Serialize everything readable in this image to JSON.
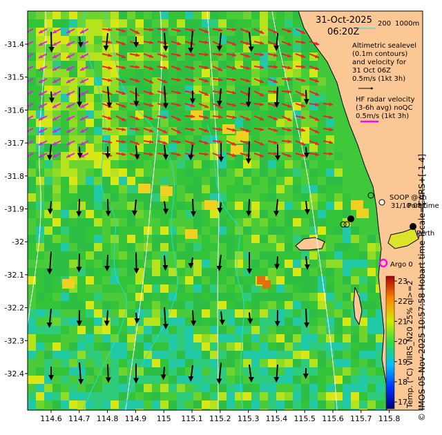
{
  "header": {
    "date": "31-Oct-2025",
    "time": "06:20Z"
  },
  "scale_bar": {
    "label_a": "200",
    "label_b": "1000m"
  },
  "altimetry": {
    "lines": [
      "Altimetric sealevel",
      "(0.1m contours)",
      "and velocity for",
      "31 Oct 06Z",
      "0.5m/s (1kt 3h)"
    ]
  },
  "hf_radar": {
    "lines": [
      "HF radar velocity",
      "(3-6h avg) noQC",
      "0.5m/s (1kt 3h)"
    ]
  },
  "soop": {
    "lines": [
      "SOOP @1h",
      "31/10 08Z"
    ],
    "overlap_text": "Port time"
  },
  "places": {
    "perth": "Perth"
  },
  "argo": {
    "label": "Argo 0"
  },
  "x_ticks": [
    "114.6",
    "114.7",
    "114.8",
    "114.9",
    "115",
    "115.1",
    "115.2",
    "115.3",
    "115.4",
    "115.5",
    "115.6",
    "115.7",
    "115.8"
  ],
  "y_ticks": [
    "-31.4",
    "-31.5",
    "-31.6",
    "-31.7",
    "-31.8",
    "-31.9",
    "-32",
    "-32.1",
    "-32.2",
    "-32.3",
    "-32.4"
  ],
  "colorbar": {
    "ticks": [
      "23",
      "22",
      "21",
      "20",
      "19",
      "18",
      "17"
    ],
    "label": "Temp. (°C) VIIRS_N20 25% ql>=2"
  },
  "credit": "© IMOS 05-Nov-2025 10:57:58 Hobart time Tscale=CARS+[-1 4]",
  "colors": {
    "land": "#fbc794",
    "ocean_warm": "#b5e41e",
    "ocean_mid": "#3fc83a",
    "ocean_cool": "#1ec8a8",
    "altimetry_arrow": "#000000",
    "hf_radar_arrow": "#ee2222",
    "hf_radar_arrow_alt": "#dd22dd",
    "contour": "#ffffff",
    "bathymetry": "#22dddd",
    "argo": "#ff00ff"
  }
}
